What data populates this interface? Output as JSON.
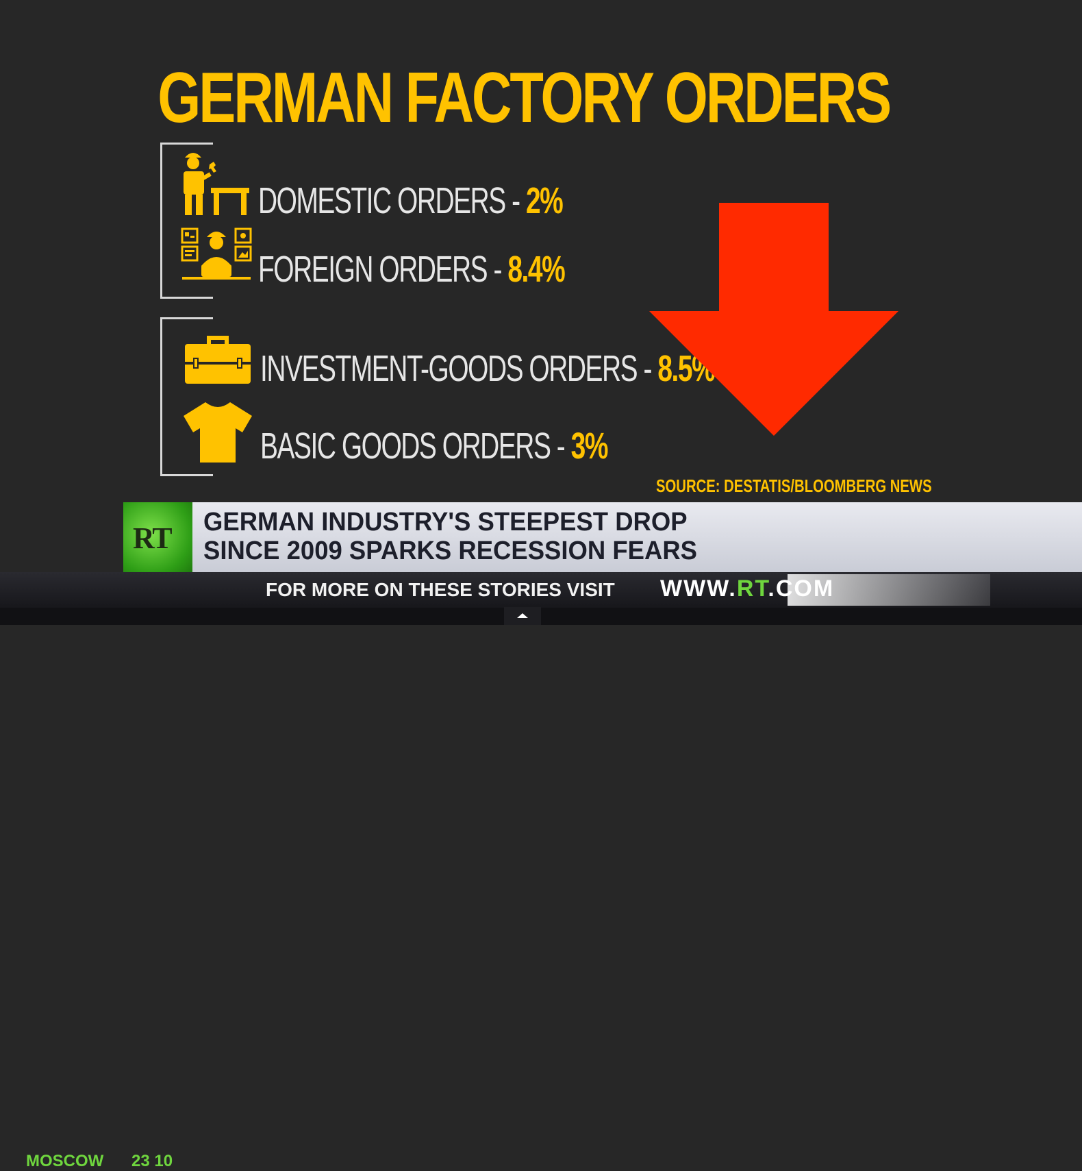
{
  "title": "GERMAN FACTORY ORDERS",
  "orders": [
    {
      "label": "DOMESTIC ORDERS - ",
      "value": "2%"
    },
    {
      "label": "FOREIGN ORDERS - ",
      "value": "8.4%"
    },
    {
      "label": "INVESTMENT-GOODS ORDERS - ",
      "value": "8.5%"
    },
    {
      "label": "BASIC GOODS ORDERS - ",
      "value": "3%"
    }
  ],
  "icons": [
    "worker-with-wrench-icon",
    "engineer-at-screens-icon",
    "briefcase-icon",
    "tshirt-icon",
    "down-arrow-icon"
  ],
  "source": "SOURCE: DESTATIS/BLOOMBERG NEWS",
  "lower_third": {
    "logo": "RT",
    "headline_line1": "GERMAN INDUSTRY'S STEEPEST DROP",
    "headline_line2": "SINCE 2009 SPARKS RECESSION FEARS"
  },
  "ticker": {
    "city": "MOSCOW",
    "time": "23 10",
    "text": "FOR MORE ON THESE STORIES VISIT",
    "url_prefix": "WWW.",
    "url_brand": "RT",
    "url_suffix": ".COM"
  },
  "colors": {
    "accent": "#FFC200",
    "arrow": "#FF2A00",
    "rt_green": "#6fd63e",
    "background": "#272727"
  }
}
